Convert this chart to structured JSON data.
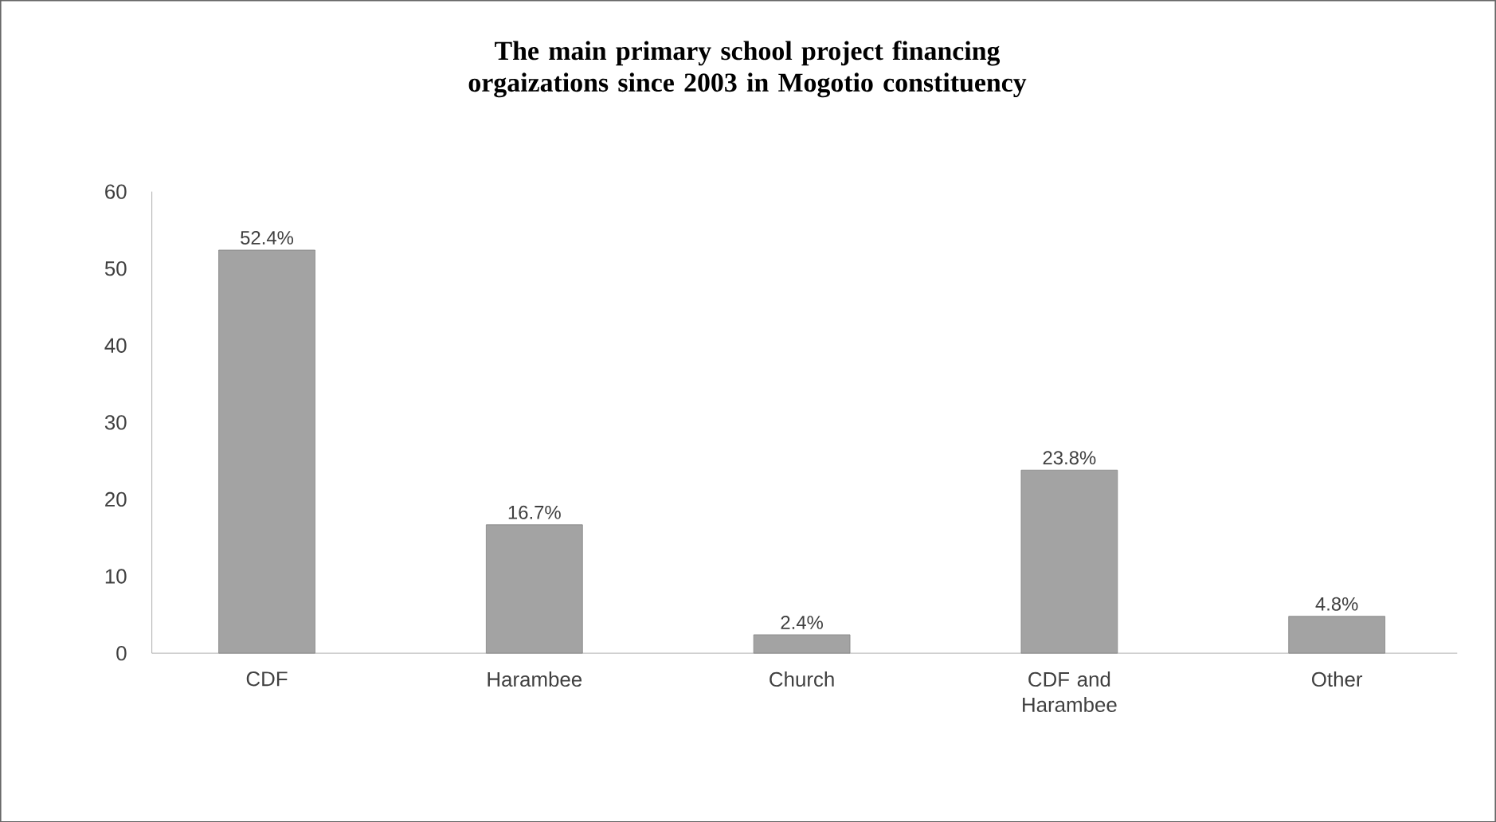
{
  "chart_data": {
    "type": "bar",
    "title": "The main primary school project financing orgaizations since 2003 in Mogotio constituency",
    "categories": [
      "CDF",
      "Harambee",
      "Church",
      "CDF and Harambee",
      "Other"
    ],
    "values": [
      52.4,
      16.7,
      2.4,
      23.8,
      4.8
    ],
    "value_labels": [
      "52.4%",
      "16.7%",
      "2.4%",
      "23.8%",
      "4.8%"
    ],
    "color": "#a3a3a3",
    "ylim": [
      0,
      60
    ],
    "yticks": [
      0,
      10,
      20,
      30,
      40,
      50,
      60
    ],
    "grid": false
  }
}
